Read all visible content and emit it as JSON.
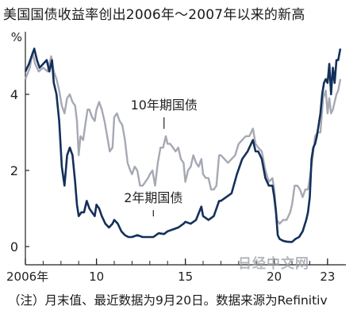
{
  "header": {
    "title": "美国国债收益率创出2006年～2007年以来的新高"
  },
  "footer": {
    "note": "（注）月末值、最近数据为9月20日。数据来源为Refinitiv"
  },
  "watermark": {
    "text": "日经中文网"
  },
  "colors": {
    "two_year": "#14305a",
    "ten_year": "#a6a9b3",
    "axis": "#222222"
  },
  "chart_data": {
    "type": "line",
    "title": "美国国债收益率创出2006年～2007年以来的新高",
    "ylabel": "%",
    "xlabel": "",
    "ylim": [
      0,
      5.5
    ],
    "xlim": [
      2006.0,
      2023.72
    ],
    "grid": false,
    "y_ticks": [
      0,
      2,
      4
    ],
    "x_ticks": [
      {
        "value": 2006.0,
        "label": "2006年"
      },
      {
        "value": 2010.0,
        "label": "10"
      },
      {
        "value": 2015.0,
        "label": "15"
      },
      {
        "value": 2020.0,
        "label": "20"
      },
      {
        "value": 2023.0,
        "label": "23"
      }
    ],
    "series": [
      {
        "name": "10年期国债",
        "key": "ten_year",
        "x": [
          2006.0,
          2006.25,
          2006.4,
          2006.55,
          2006.75,
          2007.0,
          2007.25,
          2007.45,
          2007.6,
          2007.75,
          2007.9,
          2008.05,
          2008.2,
          2008.35,
          2008.5,
          2008.65,
          2008.8,
          2008.9,
          2009.0,
          2009.1,
          2009.25,
          2009.4,
          2009.5,
          2009.6,
          2009.75,
          2009.9,
          2010.0,
          2010.15,
          2010.3,
          2010.45,
          2010.6,
          2010.75,
          2010.9,
          2011.0,
          2011.15,
          2011.3,
          2011.45,
          2011.6,
          2011.75,
          2011.9,
          2012.0,
          2012.15,
          2012.3,
          2012.45,
          2012.6,
          2012.75,
          2012.9,
          2013.0,
          2013.15,
          2013.3,
          2013.45,
          2013.6,
          2013.75,
          2013.9,
          2014.0,
          2014.15,
          2014.3,
          2014.45,
          2014.6,
          2014.75,
          2014.9,
          2015.0,
          2015.15,
          2015.3,
          2015.45,
          2015.6,
          2015.75,
          2015.9,
          2016.0,
          2016.15,
          2016.3,
          2016.45,
          2016.6,
          2016.75,
          2016.9,
          2017.0,
          2017.2,
          2017.4,
          2017.6,
          2017.8,
          2018.0,
          2018.2,
          2018.4,
          2018.6,
          2018.8,
          2018.95,
          2019.1,
          2019.3,
          2019.5,
          2019.7,
          2019.9,
          2020.0,
          2020.15,
          2020.3,
          2020.5,
          2020.7,
          2020.9,
          2021.0,
          2021.15,
          2021.3,
          2021.45,
          2021.6,
          2021.75,
          2021.9,
          2022.0,
          2022.15,
          2022.3,
          2022.45,
          2022.6,
          2022.75,
          2022.9,
          2023.0,
          2023.1,
          2023.2,
          2023.3,
          2023.4,
          2023.5,
          2023.6,
          2023.72
        ],
        "y": [
          4.4,
          4.7,
          5.1,
          4.8,
          4.6,
          4.7,
          4.6,
          5.0,
          4.6,
          4.4,
          4.1,
          3.7,
          3.5,
          3.9,
          4.0,
          3.8,
          3.7,
          3.3,
          2.4,
          2.9,
          2.8,
          3.3,
          3.6,
          3.6,
          3.4,
          3.3,
          3.6,
          3.8,
          3.6,
          3.3,
          2.9,
          2.5,
          2.6,
          3.4,
          3.5,
          3.3,
          3.2,
          2.8,
          2.2,
          2.0,
          1.9,
          2.1,
          2.0,
          1.6,
          1.6,
          1.7,
          1.8,
          1.9,
          2.0,
          1.6,
          2.2,
          2.6,
          2.6,
          2.9,
          2.7,
          2.7,
          2.6,
          2.5,
          2.6,
          2.3,
          2.2,
          1.7,
          2.0,
          2.1,
          2.4,
          2.2,
          2.1,
          2.3,
          1.9,
          1.8,
          1.8,
          1.5,
          1.5,
          1.6,
          2.4,
          2.4,
          2.3,
          2.2,
          2.3,
          2.4,
          2.7,
          2.8,
          2.9,
          2.9,
          3.1,
          2.7,
          2.6,
          2.5,
          2.0,
          1.7,
          1.8,
          1.5,
          0.7,
          0.6,
          0.7,
          0.7,
          0.9,
          1.1,
          1.6,
          1.6,
          1.5,
          1.3,
          1.5,
          1.5,
          1.8,
          2.3,
          2.9,
          3.0,
          3.0,
          3.9,
          4.1,
          3.5,
          3.9,
          3.5,
          3.6,
          3.8,
          4.0,
          4.1,
          4.4
        ]
      },
      {
        "name": "2年期国债",
        "key": "two_year",
        "x": [
          2006.0,
          2006.2,
          2006.35,
          2006.5,
          2006.65,
          2006.8,
          2007.0,
          2007.2,
          2007.35,
          2007.5,
          2007.6,
          2007.75,
          2007.9,
          2008.05,
          2008.2,
          2008.35,
          2008.5,
          2008.65,
          2008.8,
          2008.9,
          2009.0,
          2009.15,
          2009.3,
          2009.45,
          2009.6,
          2009.75,
          2009.9,
          2010.0,
          2010.15,
          2010.3,
          2010.5,
          2010.7,
          2010.9,
          2011.0,
          2011.2,
          2011.4,
          2011.6,
          2011.8,
          2012.0,
          2012.3,
          2012.6,
          2012.9,
          2013.2,
          2013.5,
          2013.8,
          2014.0,
          2014.3,
          2014.6,
          2014.9,
          2015.0,
          2015.3,
          2015.6,
          2015.9,
          2016.0,
          2016.3,
          2016.6,
          2016.9,
          2017.0,
          2017.3,
          2017.6,
          2017.9,
          2018.2,
          2018.5,
          2018.8,
          2018.95,
          2019.1,
          2019.3,
          2019.5,
          2019.7,
          2019.9,
          2020.0,
          2020.1,
          2020.2,
          2020.3,
          2020.5,
          2020.7,
          2020.9,
          2021.0,
          2021.2,
          2021.4,
          2021.6,
          2021.8,
          2021.9,
          2022.0,
          2022.1,
          2022.2,
          2022.3,
          2022.4,
          2022.5,
          2022.6,
          2022.7,
          2022.8,
          2022.9,
          2023.0,
          2023.1,
          2023.2,
          2023.3,
          2023.4,
          2023.5,
          2023.6,
          2023.72
        ],
        "y": [
          4.6,
          4.8,
          5.0,
          5.2,
          4.9,
          4.7,
          4.8,
          4.9,
          4.6,
          4.9,
          4.3,
          4.0,
          3.3,
          2.1,
          1.6,
          2.4,
          2.6,
          2.4,
          1.7,
          1.1,
          0.8,
          0.9,
          0.9,
          1.2,
          1.0,
          0.9,
          0.8,
          1.1,
          1.0,
          0.8,
          0.6,
          0.5,
          0.6,
          0.7,
          0.6,
          0.4,
          0.3,
          0.25,
          0.25,
          0.3,
          0.25,
          0.25,
          0.25,
          0.35,
          0.33,
          0.4,
          0.45,
          0.5,
          0.6,
          0.65,
          0.6,
          0.7,
          1.05,
          0.8,
          0.7,
          0.8,
          1.2,
          1.2,
          1.3,
          1.4,
          1.9,
          2.3,
          2.5,
          2.8,
          2.5,
          2.5,
          2.3,
          1.8,
          1.6,
          1.6,
          1.3,
          0.9,
          0.3,
          0.2,
          0.15,
          0.13,
          0.12,
          0.12,
          0.2,
          0.25,
          0.4,
          0.7,
          0.9,
          1.3,
          2.3,
          2.6,
          2.7,
          2.9,
          3.2,
          3.5,
          4.0,
          4.3,
          4.4,
          4.3,
          4.8,
          4.0,
          4.7,
          4.3,
          4.9,
          4.9,
          5.2
        ]
      }
    ],
    "annotations": [
      {
        "text": "10年期国债",
        "series": "ten_year",
        "x": 2013.8,
        "y": 3.05
      },
      {
        "text": "2年期国债",
        "series": "two_year",
        "x": 2013.2,
        "y": 0.75
      }
    ]
  }
}
